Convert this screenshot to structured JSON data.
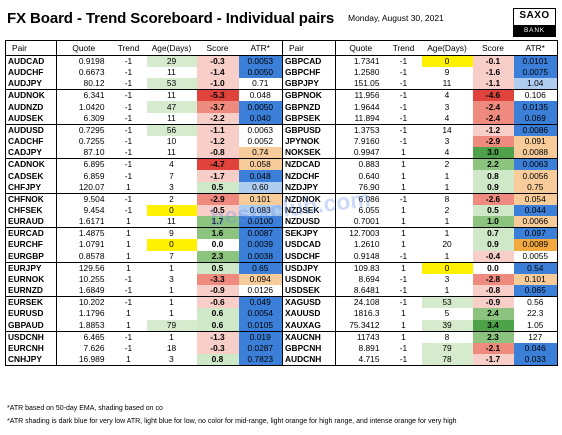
{
  "header": {
    "title": "FX Board - Trend Scoreboard - Individual pairs",
    "date": "Monday, August 30, 2021",
    "logo_top": "SAXO",
    "logo_bottom": "BANK"
  },
  "columns": [
    "Pair",
    "Quote",
    "Trend",
    "Age(Days)",
    "Score",
    "ATR*"
  ],
  "colors": {
    "score_red_strong": "#e0433b",
    "score_red_mid": "#ee8a7e",
    "score_red_light": "#f8cfc8",
    "score_green_strong": "#4ea24a",
    "score_green_mid": "#8cc47f",
    "score_green_light": "#cfe8c7",
    "age_green": "#d6ebcd",
    "age_yellow": "#fff100",
    "atr_dark_blue": "#3b7fd9",
    "atr_light_blue": "#aecdf0",
    "atr_light_orange": "#f8cb9a",
    "atr_intense_orange": "#f2a93f"
  },
  "tables": {
    "left": [
      {
        "pair": "AUDCAD",
        "quote": "0.9198",
        "trend": "-1",
        "age": "29",
        "score": "-0.3",
        "atr": "0.0053",
        "age_shade": "green",
        "score_shade": "red_light",
        "atr_shade": "dark_blue",
        "group_end": false
      },
      {
        "pair": "AUDCHF",
        "quote": "0.6673",
        "trend": "-1",
        "age": "11",
        "score": "-1.4",
        "atr": "0.0050",
        "age_shade": "",
        "score_shade": "red_light",
        "atr_shade": "dark_blue",
        "group_end": false
      },
      {
        "pair": "AUDJPY",
        "quote": "80.12",
        "trend": "-1",
        "age": "53",
        "score": "-1.0",
        "atr": "0.71",
        "age_shade": "green",
        "score_shade": "red_light",
        "atr_shade": "",
        "group_end": true
      },
      {
        "pair": "AUDNOK",
        "quote": "6.341",
        "trend": "-1",
        "age": "11",
        "score": "-5.3",
        "atr": "0.048",
        "age_shade": "",
        "score_shade": "red_strong",
        "atr_shade": "",
        "group_end": false
      },
      {
        "pair": "AUDNZD",
        "quote": "1.0420",
        "trend": "-1",
        "age": "47",
        "score": "-3.7",
        "atr": "0.0050",
        "age_shade": "green",
        "score_shade": "red_mid",
        "atr_shade": "dark_blue",
        "group_end": false
      },
      {
        "pair": "AUDSEK",
        "quote": "6.309",
        "trend": "-1",
        "age": "11",
        "score": "-2.2",
        "atr": "0.040",
        "age_shade": "",
        "score_shade": "red_light",
        "atr_shade": "dark_blue",
        "group_end": true
      },
      {
        "pair": "AUDUSD",
        "quote": "0.7295",
        "trend": "-1",
        "age": "56",
        "score": "-1.1",
        "atr": "0.0063",
        "age_shade": "green",
        "score_shade": "red_light",
        "atr_shade": "",
        "group_end": false
      },
      {
        "pair": "CADCHF",
        "quote": "0.7255",
        "trend": "-1",
        "age": "10",
        "score": "-1.2",
        "atr": "0.0052",
        "age_shade": "",
        "score_shade": "red_light",
        "atr_shade": "",
        "group_end": false
      },
      {
        "pair": "CADJPY",
        "quote": "87.10",
        "trend": "-1",
        "age": "11",
        "score": "-0.8",
        "atr": "0.74",
        "age_shade": "",
        "score_shade": "red_light",
        "atr_shade": "light_orange",
        "group_end": true
      },
      {
        "pair": "CADNOK",
        "quote": "6.895",
        "trend": "-1",
        "age": "4",
        "score": "-4.7",
        "atr": "0.058",
        "age_shade": "",
        "score_shade": "red_strong",
        "atr_shade": "light_orange",
        "group_end": false
      },
      {
        "pair": "CADSEK",
        "quote": "6.859",
        "trend": "-1",
        "age": "7",
        "score": "-1.7",
        "atr": "0.048",
        "age_shade": "",
        "score_shade": "red_light",
        "atr_shade": "dark_blue",
        "group_end": false
      },
      {
        "pair": "CHFJPY",
        "quote": "120.07",
        "trend": "1",
        "age": "3",
        "score": "0.5",
        "atr": "0.60",
        "age_shade": "",
        "score_shade": "green_light",
        "atr_shade": "light_blue",
        "group_end": true
      },
      {
        "pair": "CHFNOK",
        "quote": "9.504",
        "trend": "-1",
        "age": "2",
        "score": "-2.9",
        "atr": "0.101",
        "age_shade": "",
        "score_shade": "red_mid",
        "atr_shade": "light_orange",
        "group_end": false
      },
      {
        "pair": "CHFSEK",
        "quote": "9.454",
        "trend": "-1",
        "age": "0",
        "score": "-0.5",
        "atr": "0.083",
        "age_shade": "yellow",
        "score_shade": "red_light",
        "atr_shade": "light_blue",
        "group_end": false
      },
      {
        "pair": "EURAUD",
        "quote": "1.6171",
        "trend": "1",
        "age": "11",
        "score": "1.7",
        "atr": "0.0100",
        "age_shade": "",
        "score_shade": "green_mid",
        "atr_shade": "dark_blue",
        "group_end": true
      },
      {
        "pair": "EURCAD",
        "quote": "1.4875",
        "trend": "1",
        "age": "9",
        "score": "1.6",
        "atr": "0.0087",
        "age_shade": "",
        "score_shade": "green_mid",
        "atr_shade": "dark_blue",
        "group_end": false
      },
      {
        "pair": "EURCHF",
        "quote": "1.0791",
        "trend": "1",
        "age": "0",
        "score": "0.0",
        "atr": "0.0039",
        "age_shade": "yellow",
        "score_shade": "",
        "atr_shade": "dark_blue",
        "group_end": false
      },
      {
        "pair": "EURGBP",
        "quote": "0.8578",
        "trend": "1",
        "age": "7",
        "score": "2.3",
        "atr": "0.0038",
        "age_shade": "",
        "score_shade": "green_mid",
        "atr_shade": "dark_blue",
        "group_end": true
      },
      {
        "pair": "EURJPY",
        "quote": "129.56",
        "trend": "1",
        "age": "1",
        "score": "0.5",
        "atr": "0.65",
        "age_shade": "",
        "score_shade": "green_light",
        "atr_shade": "dark_blue",
        "group_end": false
      },
      {
        "pair": "EURNOK",
        "quote": "10.255",
        "trend": "-1",
        "age": "3",
        "score": "-3.3",
        "atr": "0.094",
        "age_shade": "",
        "score_shade": "red_mid",
        "atr_shade": "light_orange",
        "group_end": false
      },
      {
        "pair": "EURNZD",
        "quote": "1.6849",
        "trend": "-1",
        "age": "1",
        "score": "-0.9",
        "atr": "0.0126",
        "age_shade": "",
        "score_shade": "red_light",
        "atr_shade": "",
        "group_end": true
      },
      {
        "pair": "EURSEK",
        "quote": "10.202",
        "trend": "-1",
        "age": "1",
        "score": "-0.6",
        "atr": "0.049",
        "age_shade": "",
        "score_shade": "red_light",
        "atr_shade": "dark_blue",
        "group_end": false
      },
      {
        "pair": "EURUSD",
        "quote": "1.1796",
        "trend": "1",
        "age": "1",
        "score": "0.6",
        "atr": "0.0054",
        "age_shade": "",
        "score_shade": "green_light",
        "atr_shade": "dark_blue",
        "group_end": false
      },
      {
        "pair": "GBPAUD",
        "quote": "1.8853",
        "trend": "1",
        "age": "79",
        "score": "0.6",
        "atr": "0.0105",
        "age_shade": "green",
        "score_shade": "green_light",
        "atr_shade": "dark_blue",
        "group_end": true
      },
      {
        "pair": "USDCNH",
        "quote": "6.465",
        "trend": "-1",
        "age": "1",
        "score": "-1.3",
        "atr": "0.019",
        "age_shade": "",
        "score_shade": "red_light",
        "atr_shade": "dark_blue",
        "group_end": false
      },
      {
        "pair": "EURCNH",
        "quote": "7.626",
        "trend": "-1",
        "age": "18",
        "score": "-0.3",
        "atr": "0.0287",
        "age_shade": "",
        "score_shade": "red_light",
        "atr_shade": "dark_blue",
        "group_end": false
      },
      {
        "pair": "CNHJPY",
        "quote": "16.989",
        "trend": "1",
        "age": "3",
        "score": "0.8",
        "atr": "0.7823",
        "age_shade": "",
        "score_shade": "green_light",
        "atr_shade": "dark_blue",
        "group_end": true
      }
    ],
    "right": [
      {
        "pair": "GBPCAD",
        "quote": "1.7341",
        "trend": "-1",
        "age": "0",
        "score": "-0.1",
        "atr": "0.0101",
        "age_shade": "yellow",
        "score_shade": "red_light",
        "atr_shade": "dark_blue",
        "group_end": false
      },
      {
        "pair": "GBPCHF",
        "quote": "1.2580",
        "trend": "-1",
        "age": "9",
        "score": "-1.6",
        "atr": "0.0075",
        "age_shade": "",
        "score_shade": "red_light",
        "atr_shade": "dark_blue",
        "group_end": false
      },
      {
        "pair": "GBPJPY",
        "quote": "151.05",
        "trend": "-1",
        "age": "11",
        "score": "-1.1",
        "atr": "1.04",
        "age_shade": "",
        "score_shade": "red_light",
        "atr_shade": "light_blue",
        "group_end": true
      },
      {
        "pair": "GBPNOK",
        "quote": "11.956",
        "trend": "-1",
        "age": "4",
        "score": "-4.6",
        "atr": "0.106",
        "age_shade": "",
        "score_shade": "red_strong",
        "atr_shade": "",
        "group_end": false
      },
      {
        "pair": "GBPNZD",
        "quote": "1.9644",
        "trend": "-1",
        "age": "3",
        "score": "-2.4",
        "atr": "0.0135",
        "age_shade": "",
        "score_shade": "red_mid",
        "atr_shade": "dark_blue",
        "group_end": false
      },
      {
        "pair": "GBPSEK",
        "quote": "11.894",
        "trend": "-1",
        "age": "4",
        "score": "-2.4",
        "atr": "0.069",
        "age_shade": "",
        "score_shade": "red_mid",
        "atr_shade": "dark_blue",
        "group_end": true
      },
      {
        "pair": "GBPUSD",
        "quote": "1.3753",
        "trend": "-1",
        "age": "14",
        "score": "-1.2",
        "atr": "0.0086",
        "age_shade": "",
        "score_shade": "red_light",
        "atr_shade": "dark_blue",
        "group_end": false
      },
      {
        "pair": "JPYNOK",
        "quote": "7.9160",
        "trend": "-1",
        "age": "3",
        "score": "-2.9",
        "atr": "0.091",
        "age_shade": "",
        "score_shade": "red_mid",
        "atr_shade": "light_orange",
        "group_end": false
      },
      {
        "pair": "NOKSEK",
        "quote": "0.9947",
        "trend": "1",
        "age": "4",
        "score": "3.0",
        "atr": "0.0088",
        "age_shade": "",
        "score_shade": "green_strong",
        "atr_shade": "light_orange",
        "group_end": true
      },
      {
        "pair": "NZDCAD",
        "quote": "0.883",
        "trend": "1",
        "age": "2",
        "score": "2.2",
        "atr": "0.0063",
        "age_shade": "",
        "score_shade": "green_mid",
        "atr_shade": "dark_blue",
        "group_end": false
      },
      {
        "pair": "NZDCHF",
        "quote": "0.640",
        "trend": "1",
        "age": "1",
        "score": "0.8",
        "atr": "0.0056",
        "age_shade": "",
        "score_shade": "green_light",
        "atr_shade": "light_orange",
        "group_end": false
      },
      {
        "pair": "NZDJPY",
        "quote": "76.90",
        "trend": "1",
        "age": "1",
        "score": "0.9",
        "atr": "0.75",
        "age_shade": "",
        "score_shade": "green_light",
        "atr_shade": "light_orange",
        "group_end": true
      },
      {
        "pair": "NZDNOK",
        "quote": "6.086",
        "trend": "-1",
        "age": "8",
        "score": "-2.6",
        "atr": "0.054",
        "age_shade": "",
        "score_shade": "red_mid",
        "atr_shade": "light_orange",
        "group_end": false
      },
      {
        "pair": "NZDSEK",
        "quote": "6.055",
        "trend": "1",
        "age": "2",
        "score": "0.5",
        "atr": "0.044",
        "age_shade": "",
        "score_shade": "green_light",
        "atr_shade": "dark_blue",
        "group_end": false
      },
      {
        "pair": "NZDUSD",
        "quote": "0.7001",
        "trend": "1",
        "age": "1",
        "score": "1.0",
        "atr": "0.0066",
        "age_shade": "",
        "score_shade": "green_mid",
        "atr_shade": "light_orange",
        "group_end": true
      },
      {
        "pair": "SEKJPY",
        "quote": "12.7003",
        "trend": "1",
        "age": "1",
        "score": "0.7",
        "atr": "0.097",
        "age_shade": "",
        "score_shade": "green_light",
        "atr_shade": "dark_blue",
        "group_end": false
      },
      {
        "pair": "USDCAD",
        "quote": "1.2610",
        "trend": "1",
        "age": "20",
        "score": "0.9",
        "atr": "0.0089",
        "age_shade": "",
        "score_shade": "green_light",
        "atr_shade": "intense_orange",
        "group_end": false
      },
      {
        "pair": "USDCHF",
        "quote": "0.9148",
        "trend": "-1",
        "age": "1",
        "score": "-0.4",
        "atr": "0.0055",
        "age_shade": "",
        "score_shade": "red_light",
        "atr_shade": "",
        "group_end": true
      },
      {
        "pair": "USDJPY",
        "quote": "109.83",
        "trend": "1",
        "age": "0",
        "score": "0.0",
        "atr": "0.54",
        "age_shade": "yellow",
        "score_shade": "",
        "atr_shade": "dark_blue",
        "group_end": false
      },
      {
        "pair": "USDNOK",
        "quote": "8.694",
        "trend": "-1",
        "age": "3",
        "score": "-2.8",
        "atr": "0.101",
        "age_shade": "",
        "score_shade": "red_mid",
        "atr_shade": "light_orange",
        "group_end": false
      },
      {
        "pair": "USDSEK",
        "quote": "8.6481",
        "trend": "-1",
        "age": "1",
        "score": "-0.8",
        "atr": "0.065",
        "age_shade": "",
        "score_shade": "red_light",
        "atr_shade": "dark_blue",
        "group_end": true
      },
      {
        "pair": "XAGUSD",
        "quote": "24.108",
        "trend": "-1",
        "age": "53",
        "score": "-0.9",
        "atr": "0.56",
        "age_shade": "green",
        "score_shade": "red_light",
        "atr_shade": "",
        "group_end": false
      },
      {
        "pair": "XAUUSD",
        "quote": "1816.3",
        "trend": "1",
        "age": "5",
        "score": "2.4",
        "atr": "22.3",
        "age_shade": "",
        "score_shade": "green_mid",
        "atr_shade": "",
        "group_end": false
      },
      {
        "pair": "XAUXAG",
        "quote": "75.3412",
        "trend": "1",
        "age": "39",
        "score": "3.4",
        "atr": "1.05",
        "age_shade": "green",
        "score_shade": "green_strong",
        "atr_shade": "",
        "group_end": true
      },
      {
        "pair": "XAUCNH",
        "quote": "11743",
        "trend": "1",
        "age": "8",
        "score": "2.3",
        "atr": "127",
        "age_shade": "",
        "score_shade": "green_mid",
        "atr_shade": "",
        "group_end": false
      },
      {
        "pair": "GBPCNH",
        "quote": "8.891",
        "trend": "-1",
        "age": "79",
        "score": "-2.1",
        "atr": "0.046",
        "age_shade": "green",
        "score_shade": "red_mid",
        "atr_shade": "dark_blue",
        "group_end": false
      },
      {
        "pair": "AUDCNH",
        "quote": "4.715",
        "trend": "-1",
        "age": "78",
        "score": "-1.7",
        "atr": "0.033",
        "age_shade": "green",
        "score_shade": "red_light",
        "atr_shade": "dark_blue",
        "group_end": true
      }
    ]
  },
  "footer": {
    "note1": "*ATR based on 50-day EMA, shading based on co",
    "note2": "*ATR shading is dark blue for very low ATR, light blue for low, no color for mid-range, light orange for high range, and intense orange for very high"
  },
  "watermark": "bestvclub.com"
}
